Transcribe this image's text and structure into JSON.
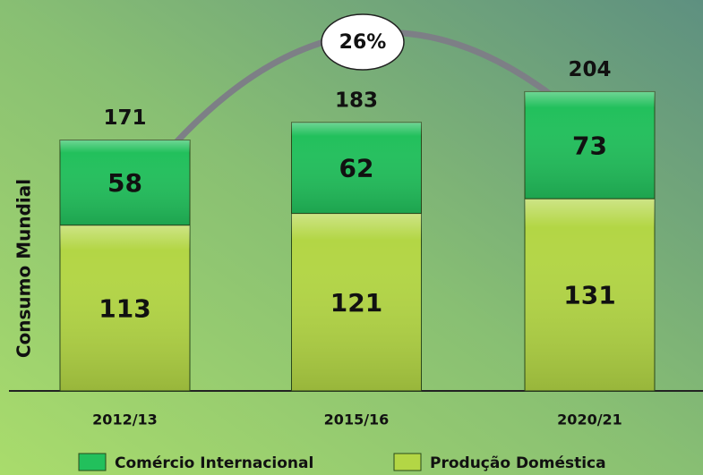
{
  "chart_data": {
    "type": "stacked_bar",
    "y_axis_label": "Consumo Mundial",
    "categories": [
      "2012/13",
      "2015/16",
      "2020/21"
    ],
    "series": [
      {
        "name": "Produção Doméstica",
        "color": "#b3d645",
        "values": [
          113,
          121,
          131
        ]
      },
      {
        "name": "Comércio Internacional",
        "color": "#22c05c",
        "values": [
          58,
          62,
          73
        ]
      }
    ],
    "totals": [
      171,
      183,
      204
    ],
    "annotation": "26%",
    "legend": "bottom"
  }
}
